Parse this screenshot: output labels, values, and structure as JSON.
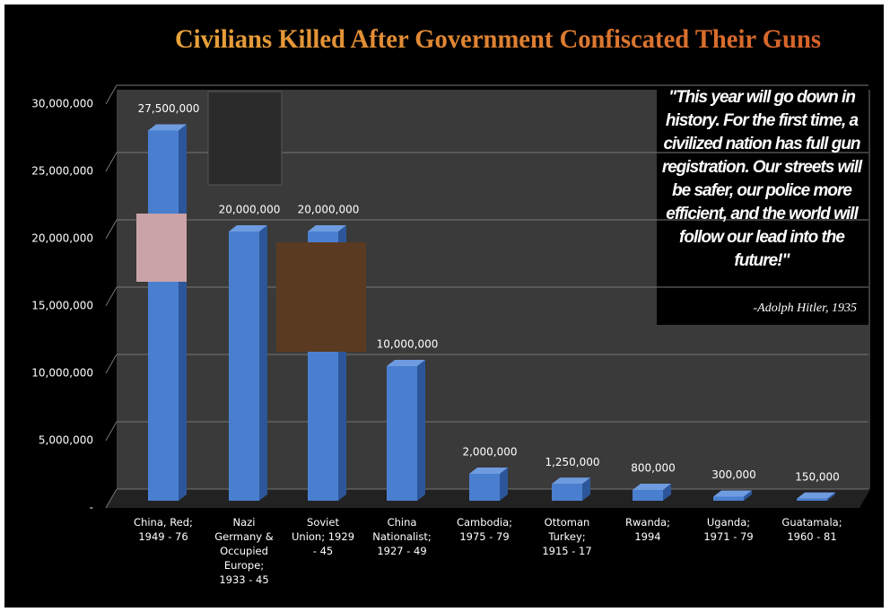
{
  "chart_data": {
    "type": "bar",
    "title": "Civilians Killed After Government Confiscated Their Guns",
    "categories": [
      "China, Red; 1949 - 76",
      "Nazi Germany & Occupied Europe; 1933 - 45",
      "Soviet Union; 1929 - 45",
      "China Nationalist; 1927 - 49",
      "Cambodia; 1975 - 79",
      "Ottoman Turkey; 1915 - 17",
      "Rwanda; 1994",
      "Uganda; 1971 - 79",
      "Guatamala; 1960 - 81"
    ],
    "values": [
      27500000,
      20000000,
      20000000,
      10000000,
      2000000,
      1250000,
      800000,
      300000,
      150000
    ],
    "value_labels": [
      "27,500,000",
      "20,000,000",
      "20,000,000",
      "10,000,000",
      "2,000,000",
      "1,250,000",
      "800,000",
      "300,000",
      "150,000"
    ],
    "color": "#4a7fd0",
    "ylim": [
      0,
      30000000
    ],
    "yticks": [
      {
        "value": 0,
        "label": "-"
      },
      {
        "value": 5000000,
        "label": "5,000,000"
      },
      {
        "value": 10000000,
        "label": "10,000,000"
      },
      {
        "value": 15000000,
        "label": "15,000,000"
      },
      {
        "value": 20000000,
        "label": "20,000,000"
      },
      {
        "value": 25000000,
        "label": "25,000,000"
      },
      {
        "value": 30000000,
        "label": "30,000,000"
      }
    ],
    "grid": true,
    "quote": "\"This year will go down in history. For the first time, a civilized nation has full gun registration. Our streets will be safer, our police more efficient, and the world will follow our lead into the future!\"",
    "quote_attribution": "-Adolph Hitler, 1935"
  }
}
